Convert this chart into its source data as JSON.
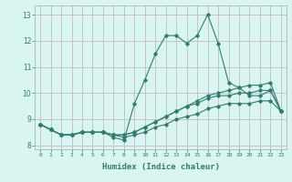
{
  "title": "",
  "xlabel": "Humidex (Indice chaleur)",
  "ylabel": "",
  "bg_color": "#d8f5f0",
  "grid_color": "#c8b8c8",
  "line_color": "#2e7d6e",
  "xlim": [
    -0.5,
    23.5
  ],
  "ylim": [
    7.85,
    13.35
  ],
  "xticks": [
    0,
    1,
    2,
    3,
    4,
    5,
    6,
    7,
    8,
    9,
    10,
    11,
    12,
    13,
    14,
    15,
    16,
    17,
    18,
    19,
    20,
    21,
    22,
    23
  ],
  "yticks": [
    8,
    9,
    10,
    11,
    12,
    13
  ],
  "series1": {
    "x": [
      0,
      1,
      2,
      3,
      4,
      5,
      6,
      7,
      8,
      9,
      10,
      11,
      12,
      13,
      14,
      15,
      16,
      17,
      18,
      19,
      20,
      21,
      22,
      23
    ],
    "y": [
      8.8,
      8.6,
      8.4,
      8.4,
      8.5,
      8.5,
      8.5,
      8.3,
      8.2,
      9.6,
      10.5,
      11.5,
      12.2,
      12.2,
      11.9,
      12.2,
      13.0,
      11.9,
      10.4,
      10.2,
      9.9,
      9.9,
      10.1,
      9.3
    ]
  },
  "series2": {
    "x": [
      0,
      1,
      2,
      3,
      4,
      5,
      6,
      7,
      8,
      9,
      10,
      11,
      12,
      13,
      14,
      15,
      16,
      17,
      18,
      19,
      20,
      21,
      22,
      23
    ],
    "y": [
      8.8,
      8.6,
      8.4,
      8.4,
      8.5,
      8.5,
      8.5,
      8.4,
      8.4,
      8.5,
      8.7,
      8.9,
      9.1,
      9.3,
      9.5,
      9.7,
      9.9,
      10.0,
      10.1,
      10.2,
      10.3,
      10.3,
      10.4,
      9.3
    ]
  },
  "series3": {
    "x": [
      0,
      1,
      2,
      3,
      4,
      5,
      6,
      7,
      8,
      9,
      10,
      11,
      12,
      13,
      14,
      15,
      16,
      17,
      18,
      19,
      20,
      21,
      22,
      23
    ],
    "y": [
      8.8,
      8.6,
      8.4,
      8.4,
      8.5,
      8.5,
      8.5,
      8.4,
      8.4,
      8.5,
      8.7,
      8.9,
      9.1,
      9.3,
      9.5,
      9.6,
      9.8,
      9.9,
      9.9,
      10.0,
      10.0,
      10.1,
      10.1,
      9.3
    ]
  },
  "series4": {
    "x": [
      0,
      1,
      2,
      3,
      4,
      5,
      6,
      7,
      8,
      9,
      10,
      11,
      12,
      13,
      14,
      15,
      16,
      17,
      18,
      19,
      20,
      21,
      22,
      23
    ],
    "y": [
      8.8,
      8.6,
      8.4,
      8.4,
      8.5,
      8.5,
      8.5,
      8.4,
      8.3,
      8.4,
      8.5,
      8.7,
      8.8,
      9.0,
      9.1,
      9.2,
      9.4,
      9.5,
      9.6,
      9.6,
      9.6,
      9.7,
      9.7,
      9.3
    ]
  }
}
